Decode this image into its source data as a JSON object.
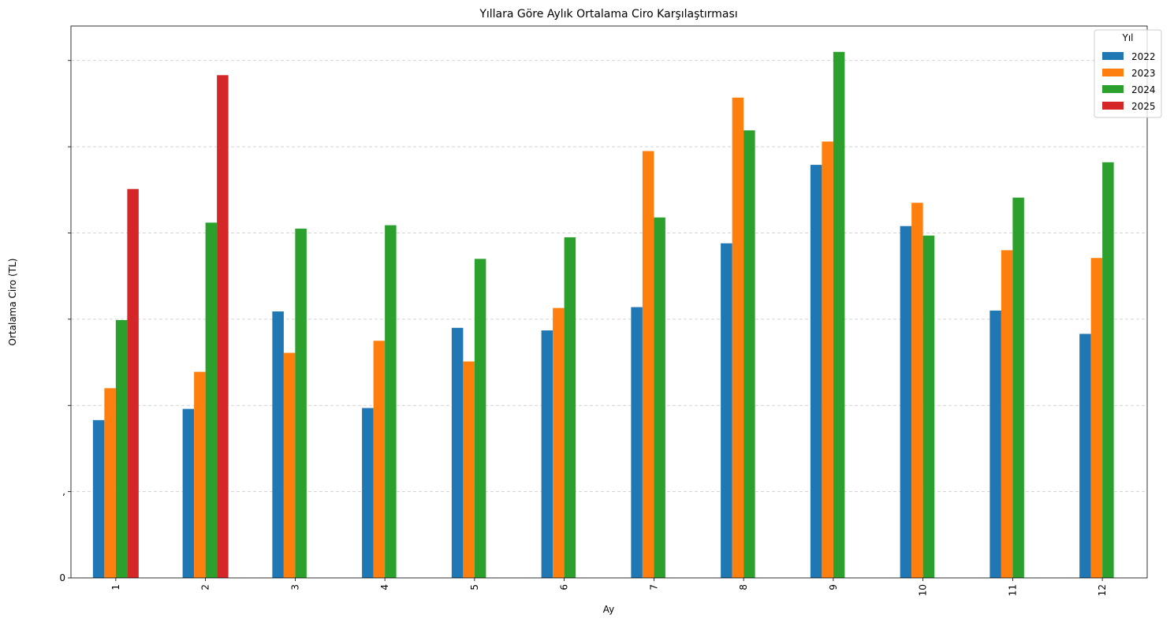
{
  "chart_data": {
    "type": "bar",
    "title": "Yıllara Göre Aylık Ortalama Ciro Karşılaştırması",
    "xlabel": "Ay",
    "ylabel": "Ortalama Ciro (TL)",
    "categories": [
      "1",
      "2",
      "3",
      "4",
      "5",
      "6",
      "7",
      "8",
      "9",
      "10",
      "11",
      "12"
    ],
    "yticks": [
      0,
      1,
      2,
      3,
      4,
      5,
      6
    ],
    "ytick_labels": [
      "0",
      ",",
      "",
      "",
      "",
      "",
      ""
    ],
    "ylim": [
      0,
      6.4
    ],
    "grid": "y-dashed",
    "legend": {
      "title": "Yıl",
      "placement": "top-right"
    },
    "series": [
      {
        "name": "2022",
        "color": "#1f77b4",
        "values": [
          1.83,
          1.96,
          3.09,
          1.97,
          2.9,
          2.87,
          3.14,
          3.88,
          4.79,
          4.08,
          3.1,
          2.83
        ]
      },
      {
        "name": "2023",
        "color": "#ff7f0e",
        "values": [
          2.2,
          2.39,
          2.61,
          2.75,
          2.51,
          3.13,
          4.95,
          5.57,
          5.06,
          4.35,
          3.8,
          3.71
        ]
      },
      {
        "name": "2024",
        "color": "#2ca02c",
        "values": [
          2.99,
          4.12,
          4.05,
          4.09,
          3.7,
          3.95,
          4.18,
          5.19,
          6.1,
          3.97,
          4.41,
          4.82
        ]
      },
      {
        "name": "2025",
        "color": "#d62728",
        "values": [
          4.51,
          5.83,
          null,
          null,
          null,
          null,
          null,
          null,
          null,
          null,
          null,
          null
        ]
      }
    ]
  }
}
